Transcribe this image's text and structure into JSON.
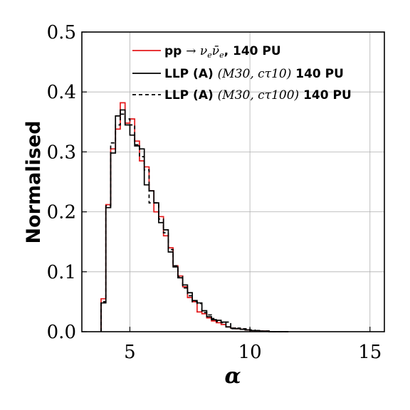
{
  "chart_data": {
    "type": "histogram",
    "xlabel": "α",
    "ylabel": "Normalised",
    "xlim": [
      3.0,
      15.6
    ],
    "ylim": [
      0.0,
      0.5
    ],
    "xticks": [
      5,
      10,
      15
    ],
    "xtick_labels": [
      "5",
      "10",
      "15"
    ],
    "yticks": [
      0.0,
      0.1,
      0.2,
      0.3,
      0.4,
      0.5
    ],
    "ytick_labels": [
      "0.0",
      "0.1",
      "0.2",
      "0.3",
      "0.4",
      "0.5"
    ],
    "grid": true,
    "legend_position": "top-right",
    "bin_edges": [
      3.8,
      4.0,
      4.2,
      4.4,
      4.6,
      4.8,
      5.0,
      5.2,
      5.4,
      5.6,
      5.8,
      6.0,
      6.2,
      6.4,
      6.6,
      6.8,
      7.0,
      7.2,
      7.4,
      7.6,
      7.8,
      8.0,
      8.2,
      8.4,
      8.6,
      8.8,
      9.0,
      9.2,
      9.4,
      9.6,
      9.8,
      10.0,
      10.2,
      10.4,
      10.6,
      10.8,
      11.0,
      11.2,
      11.4,
      11.6
    ],
    "series": [
      {
        "name": "pp → ν_e ν̄_e, 140 PU",
        "color": "#e41a1c",
        "linestyle": "solid",
        "values": [
          0.055,
          0.212,
          0.305,
          0.338,
          0.382,
          0.348,
          0.355,
          0.318,
          0.285,
          0.275,
          0.235,
          0.2,
          0.192,
          0.16,
          0.14,
          0.11,
          0.093,
          0.075,
          0.057,
          0.05,
          0.033,
          0.03,
          0.023,
          0.018,
          0.015,
          0.012,
          0.008,
          0.006,
          0.005,
          0.004,
          0.003,
          0.002,
          0.002,
          0.001,
          0.001,
          0.0,
          0.0,
          0.0,
          0.0
        ]
      },
      {
        "name": "LLP (A) (M30, cτ10) 140 PU",
        "color": "#000000",
        "linestyle": "solid",
        "values": [
          0.048,
          0.207,
          0.298,
          0.36,
          0.37,
          0.345,
          0.328,
          0.31,
          0.305,
          0.245,
          0.235,
          0.215,
          0.182,
          0.17,
          0.133,
          0.108,
          0.09,
          0.078,
          0.065,
          0.052,
          0.048,
          0.035,
          0.025,
          0.02,
          0.019,
          0.016,
          0.008,
          0.006,
          0.005,
          0.004,
          0.003,
          0.002,
          0.002,
          0.001,
          0.001,
          0.0,
          0.0,
          0.0,
          0.0
        ]
      },
      {
        "name": "LLP (A) (M30, cτ100) 140 PU",
        "color": "#000000",
        "linestyle": "dashed",
        "values": [
          0.05,
          0.21,
          0.315,
          0.345,
          0.363,
          0.355,
          0.345,
          0.312,
          0.292,
          0.27,
          0.215,
          0.215,
          0.188,
          0.165,
          0.137,
          0.11,
          0.092,
          0.073,
          0.06,
          0.05,
          0.047,
          0.032,
          0.028,
          0.022,
          0.017,
          0.015,
          0.016,
          0.005,
          0.006,
          0.005,
          0.005,
          0.003,
          0.002,
          0.001,
          0.001,
          0.0,
          0.0,
          0.0,
          0.0
        ]
      }
    ]
  }
}
